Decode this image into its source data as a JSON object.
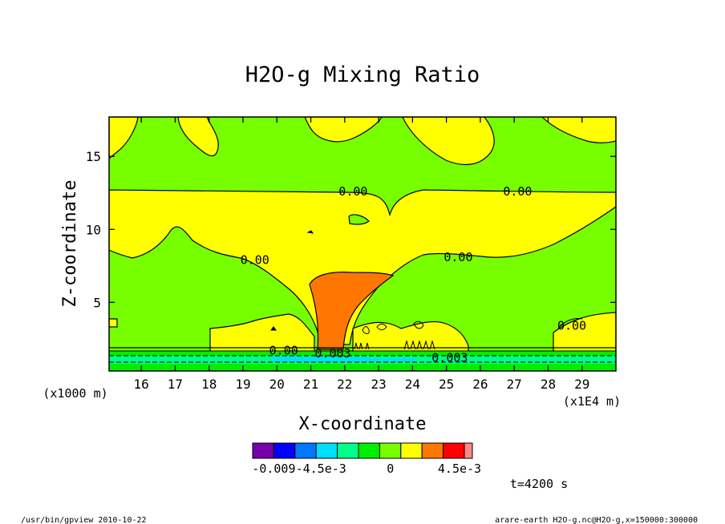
{
  "chart_data": {
    "type": "heatmap",
    "title": "H2O-g Mixing Ratio",
    "xlabel": "X-coordinate",
    "ylabel": "Z-coordinate",
    "x_scale_note": "(x1E4 m)",
    "y_scale_note": "(x1000 m)",
    "xlim": [
      15.05,
      30.0
    ],
    "ylim": [
      0.3,
      17.7
    ],
    "x_ticks": [
      16,
      17,
      18,
      19,
      20,
      21,
      22,
      23,
      24,
      25,
      26,
      27,
      28,
      29
    ],
    "x_tick_labels": [
      "16",
      "17",
      "18",
      "19",
      "20",
      "21",
      "22",
      "23",
      "24",
      "25",
      "26",
      "27",
      "28",
      "29"
    ],
    "y_ticks": [
      5,
      10,
      15
    ],
    "y_tick_labels": [
      "5",
      "10",
      "15"
    ],
    "contour_labels": [
      {
        "text": "0.00",
        "x": 22.25,
        "y": 12.6
      },
      {
        "text": "0.00",
        "x": 27.1,
        "y": 12.6
      },
      {
        "text": "0.00",
        "x": 19.35,
        "y": 7.9
      },
      {
        "text": "0.00",
        "x": 25.35,
        "y": 8.1
      },
      {
        "text": "0.00",
        "x": 20.2,
        "y": 1.7
      },
      {
        "text": "0.003",
        "x": 21.65,
        "y": 1.5
      },
      {
        "text": "0.003",
        "x": 25.1,
        "y": 1.2
      },
      {
        "text": "0.00",
        "x": 28.7,
        "y": 3.4
      }
    ],
    "colorbar": {
      "colors": [
        "#7700aa",
        "#0000ff",
        "#0077ff",
        "#00ddff",
        "#00ff88",
        "#00ee00",
        "#77ff00",
        "#ffff00",
        "#ff7700",
        "#ff0000",
        "#ff8888"
      ],
      "tick_labels": [
        "-0.009",
        "-4.5e-3",
        "0",
        "4.5e-3"
      ]
    },
    "time_label": "t=4200 s"
  },
  "footer": {
    "left": "/usr/bin/gpview   2010-10-22",
    "right": "arare-earth_H2O-g.nc@H2O-g,x=150000:300000"
  }
}
